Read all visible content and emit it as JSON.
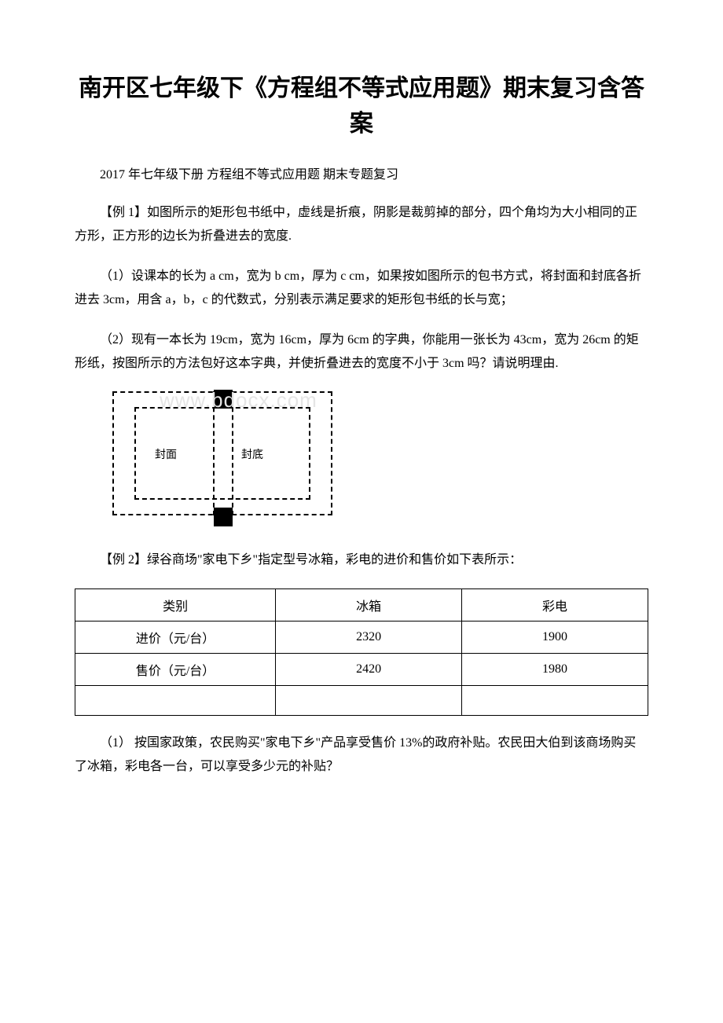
{
  "title": "南开区七年级下《方程组不等式应用题》期末复习含答案",
  "subtitle": "2017 年七年级下册 方程组不等式应用题 期末专题复习",
  "example1": {
    "heading": "【例 1】如图所示的矩形包书纸中，虚线是折痕，阴影是裁剪掉的部分，四个角均为大小相同的正方形，正方形的边长为折叠进去的宽度.",
    "part1": "（1）设课本的长为 a cm，宽为 b cm，厚为 c cm，如果按如图所示的包书方式，将封面和封底各折进去 3cm，用含 a，b，c 的代数式，分别表示满足要求的矩形包书纸的长与宽；",
    "part2": "（2）现有一本长为 19cm，宽为 16cm，厚为 6cm 的字典，你能用一张长为 43cm，宽为 26cm 的矩形纸，按图所示的方法包好这本字典，并使折叠进去的宽度不小于 3cm 吗？请说明理由."
  },
  "diagram": {
    "front_label": "封面",
    "back_label": "封底",
    "watermark": "www.bdocx.com",
    "outer_border": "dashed",
    "inner_border": "dashed",
    "spine_fill": "#000000"
  },
  "example2": {
    "heading": "【例 2】绿谷商场\"家电下乡\"指定型号冰箱，彩电的进价和售价如下表所示：",
    "part1": "（1） 按国家政策，农民购买\"家电下乡\"产品享受售价 13%的政府补贴。农民田大伯到该商场购买了冰箱，彩电各一台，可以享受多少元的补贴？"
  },
  "table": {
    "columns": [
      "类别",
      "冰箱",
      "彩电"
    ],
    "rows": [
      [
        "进价（元/台）",
        "2320",
        "1900"
      ],
      [
        "售价（元/台）",
        "2420",
        "1980"
      ],
      [
        "",
        "",
        ""
      ]
    ],
    "border_color": "#000000",
    "fontsize": 16
  },
  "colors": {
    "background": "#ffffff",
    "text": "#000000",
    "watermark": "#e5e5e5"
  }
}
